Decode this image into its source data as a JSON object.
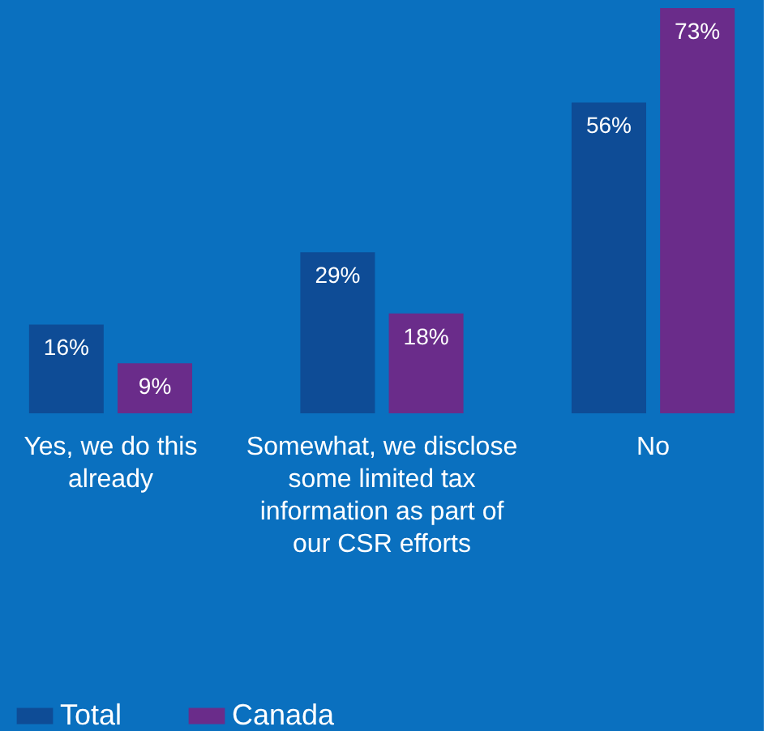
{
  "chart_data": {
    "type": "bar",
    "categories": [
      "Yes, we do this already",
      "Somewhat, we disclose some limited tax information as part of our CSR efforts",
      "No"
    ],
    "series": [
      {
        "name": "Total",
        "color": "#0e4c96",
        "values": [
          16,
          29,
          56
        ],
        "value_labels": [
          "16%",
          "29%",
          "56%"
        ]
      },
      {
        "name": "Canada",
        "color": "#6a2c8a",
        "values": [
          9,
          18,
          73
        ],
        "value_labels": [
          "9%",
          "18%",
          "73%"
        ]
      }
    ],
    "legend": "bottom left",
    "grid": false
  }
}
